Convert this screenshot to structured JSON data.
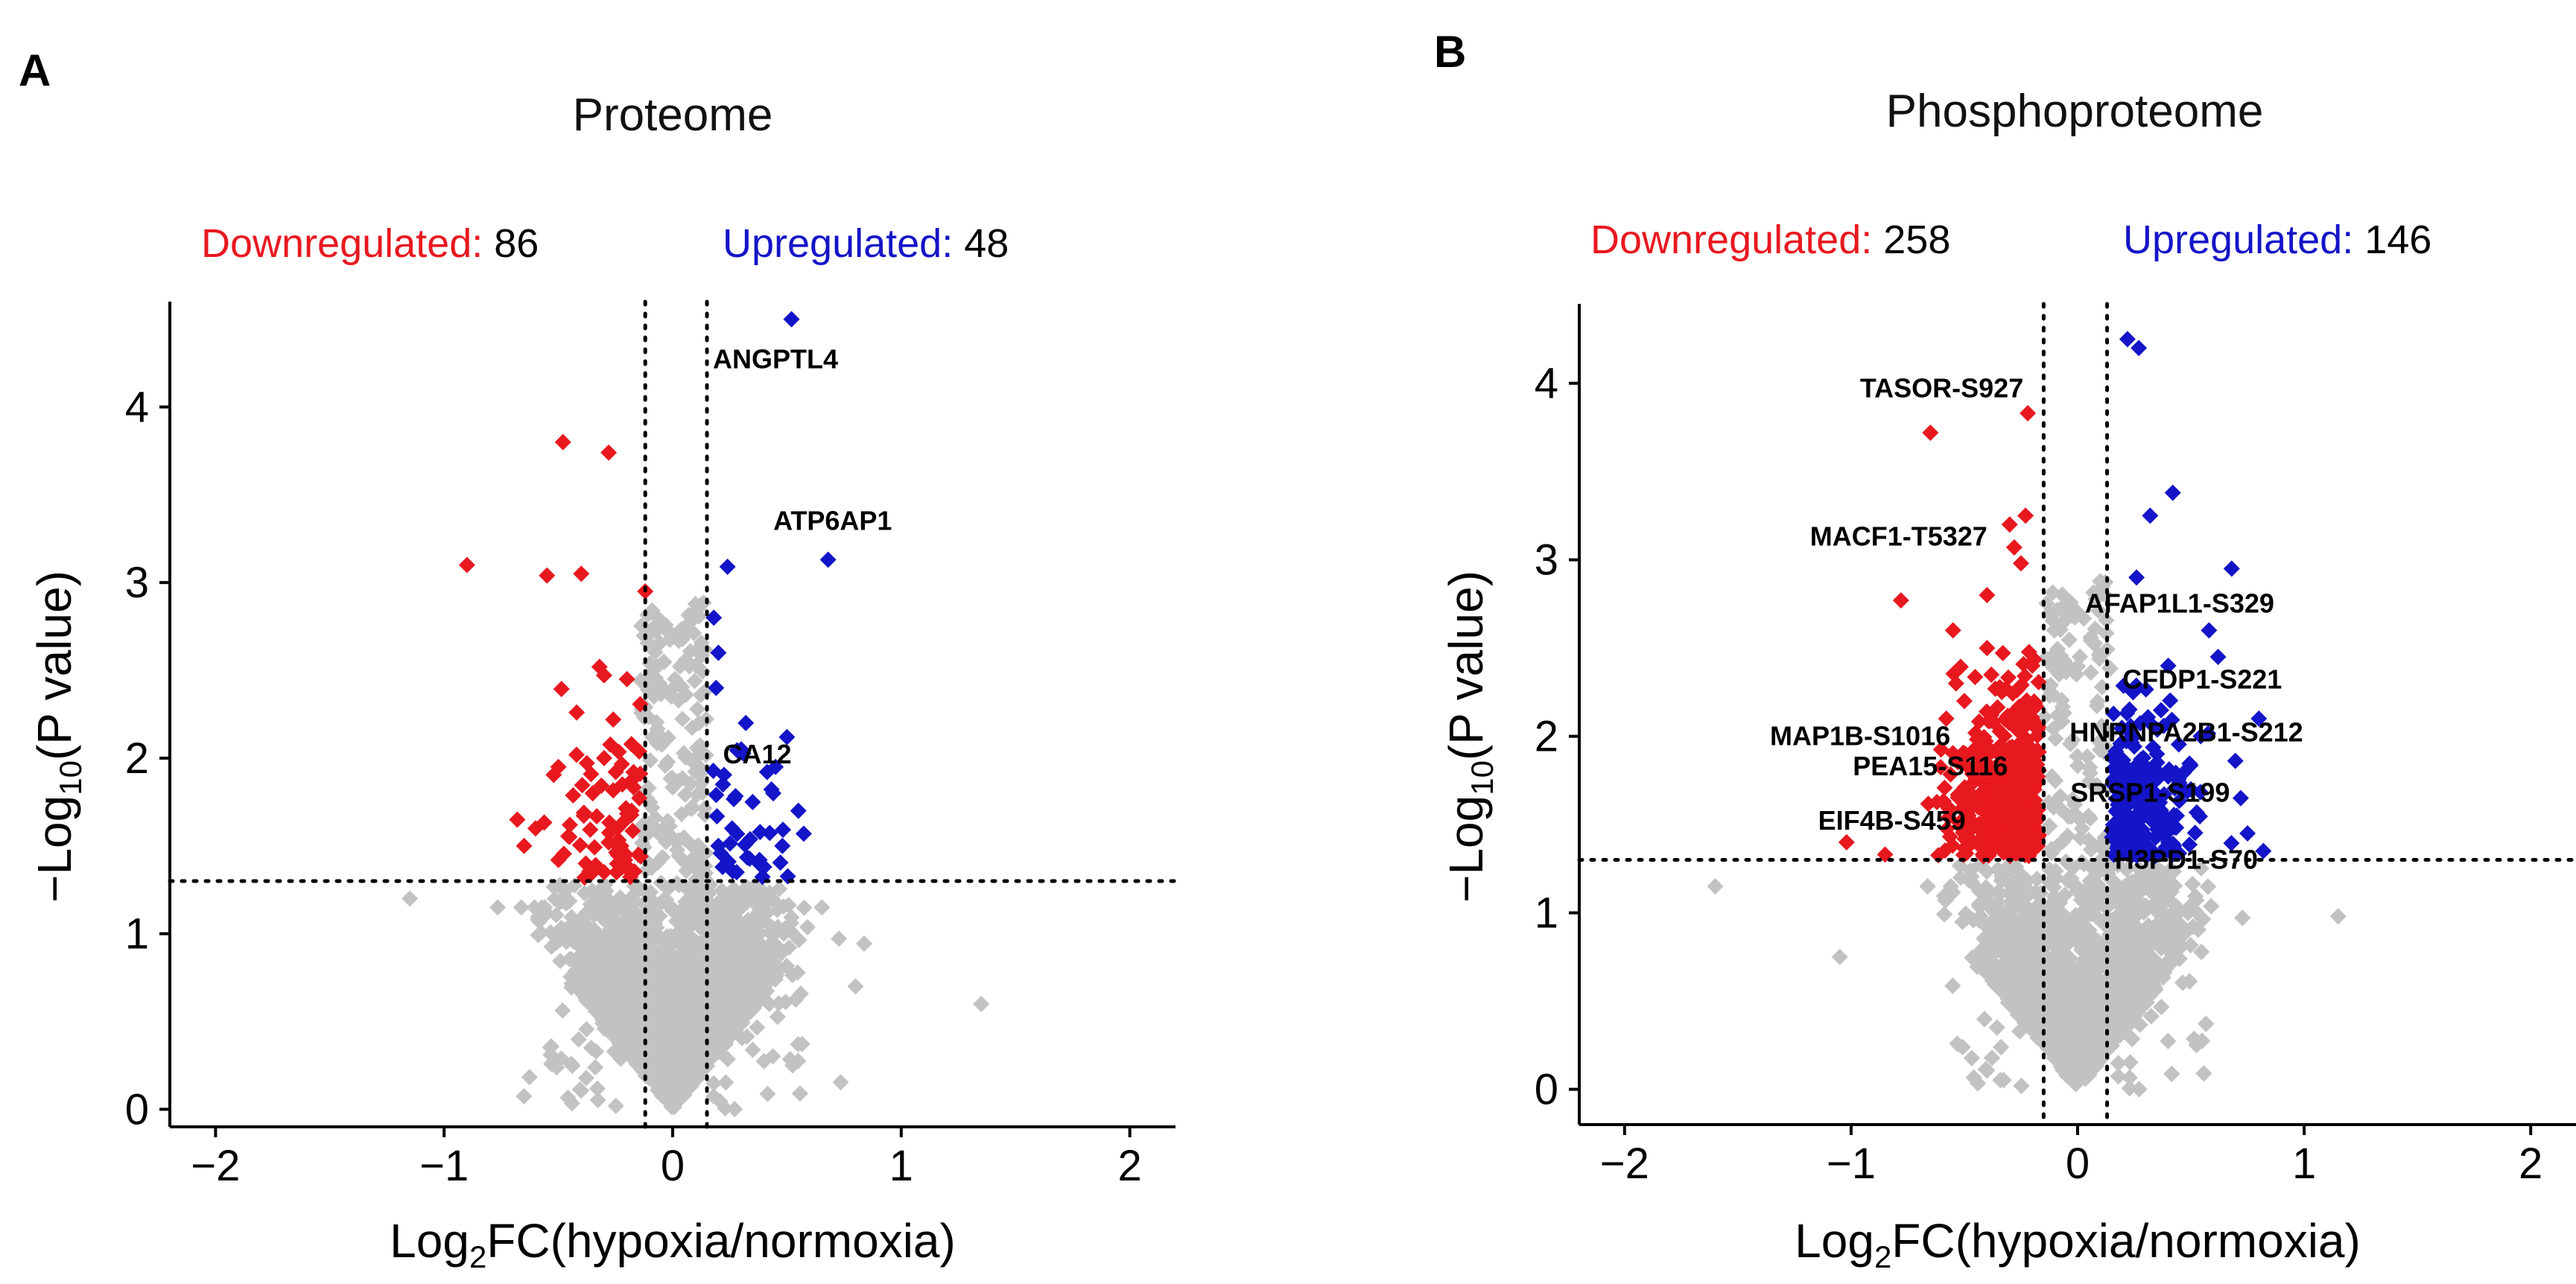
{
  "colors": {
    "down": "#e8181f",
    "up": "#1414c8",
    "ns": "#c2c2c2",
    "axis": "#000000"
  },
  "chart_data": [
    {
      "type": "scatter",
      "panel_letter": "A",
      "title": "Proteome",
      "down_label": "Downregulated",
      "down_count": "86",
      "up_label": "Upregulated",
      "up_count": "48",
      "separator": ":",
      "xlabel_pre": "Log",
      "xlabel_sub": "2",
      "xlabel_post": "FC(hypoxia/normoxia)",
      "ylabel_pre": "−Log",
      "ylabel_sub": "10",
      "ylabel_post": "(P value)",
      "xlim": [
        -2.2,
        2.2
      ],
      "ylim": [
        -0.1,
        4.6
      ],
      "xticks": [
        -2,
        -1,
        0,
        1,
        2
      ],
      "xtick_labels": [
        "−2",
        "−1",
        "0",
        "1",
        "2"
      ],
      "yticks": [
        0,
        1,
        2,
        3,
        4
      ],
      "ytick_labels": [
        "0",
        "1",
        "2",
        "3",
        "4"
      ],
      "vlines": [
        -0.12,
        0.15
      ],
      "hline": 1.3,
      "ns_count": 2200,
      "ns_outliers": [
        [
          -1.15,
          1.2
        ],
        [
          1.35,
          0.6
        ],
        [
          0.8,
          0.7
        ]
      ],
      "down_points": [
        [
          -0.48,
          3.8
        ],
        [
          -0.28,
          3.74
        ],
        [
          -0.9,
          3.1
        ],
        [
          -0.55,
          3.04
        ],
        [
          -0.4,
          3.05
        ],
        [
          -0.12,
          2.95
        ],
        [
          -0.32,
          2.52
        ],
        [
          -0.2,
          2.45
        ],
        [
          -0.42,
          2.26
        ],
        [
          -0.26,
          2.22
        ],
        [
          -0.18,
          2.08
        ],
        [
          -0.3,
          2.0
        ],
        [
          -0.5,
          1.95
        ],
        [
          -0.22,
          1.85
        ],
        [
          -0.35,
          1.8
        ],
        [
          -0.6,
          1.6
        ],
        [
          -0.68,
          1.65
        ],
        [
          -0.45,
          1.62
        ],
        [
          -0.28,
          1.52
        ],
        [
          -0.15,
          1.45
        ],
        [
          -0.38,
          1.4
        ],
        [
          -0.22,
          1.38
        ],
        [
          -0.65,
          1.5
        ],
        [
          -0.5,
          1.42
        ],
        [
          -0.3,
          1.35
        ],
        [
          -0.18,
          1.7
        ]
      ],
      "down_random": 60,
      "up_points": [
        [
          0.52,
          4.5
        ],
        [
          0.68,
          3.13
        ],
        [
          0.24,
          3.09
        ],
        [
          0.2,
          2.6
        ],
        [
          0.18,
          2.8
        ],
        [
          0.5,
          2.12
        ],
        [
          0.3,
          2.05
        ],
        [
          0.45,
          1.95
        ],
        [
          0.22,
          1.85
        ],
        [
          0.35,
          1.75
        ],
        [
          0.26,
          1.6
        ],
        [
          0.48,
          1.5
        ],
        [
          0.38,
          1.42
        ],
        [
          0.28,
          1.35
        ],
        [
          0.2,
          1.5
        ],
        [
          0.4,
          1.38
        ],
        [
          0.55,
          1.7
        ],
        [
          0.32,
          2.2
        ],
        [
          0.19,
          2.4
        ],
        [
          0.44,
          1.8
        ]
      ],
      "up_random": 28,
      "gene_labels": [
        {
          "text": "ANGPTL4",
          "x": 0.45,
          "y": 4.22
        },
        {
          "text": "ATP6AP1",
          "x": 0.7,
          "y": 3.3
        },
        {
          "text": "CA12",
          "x": 0.37,
          "y": 1.97
        }
      ]
    },
    {
      "type": "scatter",
      "panel_letter": "B",
      "title": "Phosphoproteome",
      "down_label": "Downregulated",
      "down_count": "258",
      "up_label": "Upregulated",
      "up_count": "146",
      "separator": ":",
      "xlabel_pre": "Log",
      "xlabel_sub": "2",
      "xlabel_post": "FC(hypoxia/normoxia)",
      "ylabel_pre": "−Log",
      "ylabel_sub": "10",
      "ylabel_post": "(P value)",
      "xlim": [
        -2.2,
        2.2
      ],
      "ylim": [
        -0.2,
        4.45
      ],
      "xticks": [
        -2,
        -1,
        0,
        1,
        2
      ],
      "xtick_labels": [
        "−2",
        "−1",
        "0",
        "1",
        "2"
      ],
      "yticks": [
        0,
        1,
        2,
        3,
        4
      ],
      "ytick_labels": [
        "0",
        "1",
        "2",
        "3",
        "4"
      ],
      "vlines": [
        -0.15,
        0.13
      ],
      "hline": 1.3,
      "ns_count": 4500,
      "ns_outliers": [
        [
          -1.6,
          1.15
        ],
        [
          1.15,
          0.98
        ],
        [
          -1.05,
          0.75
        ]
      ],
      "down_points": [
        [
          -0.22,
          3.83
        ],
        [
          -0.65,
          3.72
        ],
        [
          -0.23,
          3.25
        ],
        [
          -0.3,
          3.2
        ],
        [
          -0.28,
          3.07
        ],
        [
          -0.25,
          2.98
        ],
        [
          -0.78,
          2.77
        ],
        [
          -0.55,
          2.6
        ],
        [
          -0.4,
          2.5
        ],
        [
          -0.58,
          2.1
        ],
        [
          -1.02,
          1.4
        ],
        [
          -0.85,
          1.33
        ],
        [
          -0.4,
          2.8
        ],
        [
          -0.2,
          2.4
        ],
        [
          -0.5,
          2.2
        ],
        [
          -0.35,
          1.9
        ]
      ],
      "down_random": 420,
      "up_points": [
        [
          0.22,
          4.25
        ],
        [
          0.27,
          4.2
        ],
        [
          0.42,
          3.38
        ],
        [
          0.32,
          3.25
        ],
        [
          0.68,
          2.95
        ],
        [
          0.26,
          2.9
        ],
        [
          0.58,
          2.6
        ],
        [
          0.62,
          2.45
        ],
        [
          0.4,
          2.4
        ],
        [
          0.8,
          2.1
        ],
        [
          0.72,
          1.65
        ],
        [
          0.75,
          1.45
        ],
        [
          0.82,
          1.35
        ],
        [
          0.35,
          1.9
        ],
        [
          0.2,
          1.5
        ],
        [
          0.5,
          1.7
        ]
      ],
      "up_random": 230,
      "gene_labels": [
        {
          "text": "TASOR-S927",
          "x": -0.6,
          "y": 3.92
        },
        {
          "text": "MACF1-T5327",
          "x": -0.79,
          "y": 3.08
        },
        {
          "text": "AFAP1L1-S329",
          "x": 0.45,
          "y": 2.7
        },
        {
          "text": "CFDP1-S221",
          "x": 0.55,
          "y": 2.27
        },
        {
          "text": "HNRNPA2B1-S212",
          "x": 0.48,
          "y": 1.97
        },
        {
          "text": "MAP1B-S1016",
          "x": -0.96,
          "y": 1.95
        },
        {
          "text": "PEA15-S116",
          "x": -0.65,
          "y": 1.78
        },
        {
          "text": "SRSP1-S199",
          "x": 0.32,
          "y": 1.63
        },
        {
          "text": "EIF4B-S459",
          "x": -0.82,
          "y": 1.47
        },
        {
          "text": "H3PD1-S70",
          "x": 0.48,
          "y": 1.25
        }
      ]
    }
  ]
}
